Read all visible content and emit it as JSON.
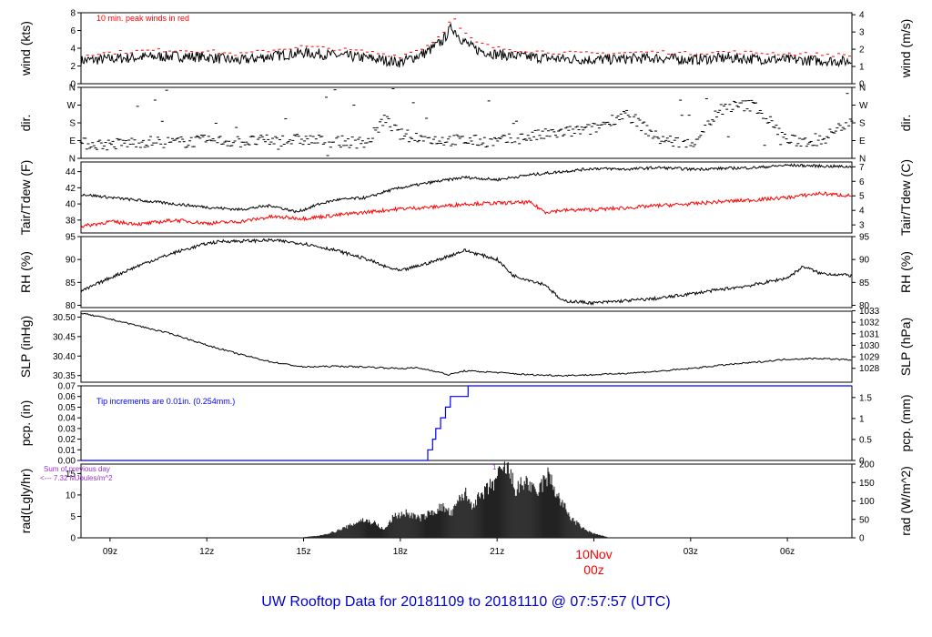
{
  "title": "UW Rooftop Data for 20181109  to  20181110 @ 07:57:57  (UTC)",
  "colors": {
    "title": "#0000cc",
    "red": "#ff0000",
    "blue": "#0000ff",
    "purple": "#9933cc",
    "black": "#000000"
  },
  "x_axis": {
    "ticks": [
      {
        "hour": 9,
        "label": "09z"
      },
      {
        "hour": 12,
        "label": "12z"
      },
      {
        "hour": 15,
        "label": "15z"
      },
      {
        "hour": 18,
        "label": "18z"
      },
      {
        "hour": 21,
        "label": "21z"
      },
      {
        "hour": 24,
        "label": ""
      },
      {
        "hour": 27,
        "label": "03z"
      },
      {
        "hour": 30,
        "label": "06z"
      }
    ],
    "day_label": "10Nov",
    "day_sublabel": "00z",
    "range": [
      8.1,
      32.0
    ]
  },
  "chart_data": [
    {
      "type": "line",
      "ylabel": "wind (kts)",
      "ylabel_right": "wind (m/s)",
      "ylim": [
        0,
        8
      ],
      "yticks": [
        0,
        2,
        4,
        6,
        8
      ],
      "yticks_right": [
        {
          "v": 0,
          "label": "0"
        },
        {
          "v": 1.944,
          "label": "1"
        },
        {
          "v": 3.888,
          "label": "2"
        },
        {
          "v": 5.832,
          "label": "3"
        },
        {
          "v": 7.776,
          "label": "4"
        }
      ],
      "annotation": "10 min. peak winds in red",
      "series": [
        {
          "role": "mean",
          "x": [
            8.1,
            9,
            10,
            11,
            12,
            13,
            14,
            15,
            16,
            17,
            18,
            18.8,
            19.3,
            19.6,
            19.9,
            20.3,
            21,
            22,
            23,
            24,
            25,
            26,
            27,
            28,
            29,
            30,
            31,
            32
          ],
          "y": [
            2.6,
            2.8,
            3.0,
            3.1,
            3.0,
            2.6,
            3.1,
            3.5,
            3.2,
            2.9,
            2.4,
            3.5,
            4.8,
            6.4,
            5.0,
            3.9,
            3.3,
            3.0,
            2.8,
            2.7,
            2.8,
            2.9,
            2.7,
            2.9,
            2.8,
            2.7,
            2.6,
            2.5
          ]
        },
        {
          "role": "peak",
          "x": [
            8.1,
            9,
            10,
            11,
            12,
            13,
            14,
            15,
            16,
            17,
            18,
            18.8,
            19.3,
            19.6,
            19.9,
            20.3,
            21,
            22,
            23,
            24,
            25,
            26,
            27,
            28,
            29,
            30,
            31,
            32
          ],
          "y": [
            3.3,
            3.5,
            3.7,
            3.8,
            3.7,
            3.3,
            3.8,
            4.2,
            3.9,
            3.6,
            3.1,
            4.2,
            5.6,
            7.7,
            6.0,
            4.7,
            4.0,
            3.7,
            3.5,
            3.4,
            3.5,
            3.6,
            3.4,
            3.6,
            3.5,
            3.4,
            3.3,
            3.2
          ]
        }
      ]
    },
    {
      "type": "scatter",
      "ylabel": "dir.",
      "ylabel_right": "dir.",
      "ylim": [
        0,
        360
      ],
      "ytick_labels": [
        {
          "v": 0,
          "label": "N"
        },
        {
          "v": 90,
          "label": "E"
        },
        {
          "v": 180,
          "label": "S"
        },
        {
          "v": 270,
          "label": "W"
        },
        {
          "v": 360,
          "label": "N"
        }
      ],
      "series": [
        {
          "x": [
            8.1,
            9,
            10,
            11,
            12,
            13,
            14,
            15,
            16,
            17,
            17.5,
            18,
            19,
            20,
            21,
            22,
            23,
            24,
            25,
            26,
            27,
            28,
            29,
            30,
            31,
            32
          ],
          "y": [
            75,
            70,
            85,
            80,
            90,
            85,
            90,
            95,
            85,
            80,
            200,
            120,
            95,
            90,
            85,
            110,
            130,
            150,
            230,
            100,
            70,
            260,
            270,
            90,
            85,
            200
          ]
        }
      ]
    },
    {
      "type": "line",
      "ylabel": "Tair/Tdew (F)",
      "ylabel_right": "Tair/Tdew (C)",
      "ylim": [
        36.4,
        45.2
      ],
      "yticks": [
        38,
        40,
        42,
        44
      ],
      "yticks_right": [
        {
          "v": 37.4,
          "label": "3"
        },
        {
          "v": 39.2,
          "label": "4"
        },
        {
          "v": 41.0,
          "label": "5"
        },
        {
          "v": 42.8,
          "label": "6"
        },
        {
          "v": 44.6,
          "label": "7"
        }
      ],
      "series": [
        {
          "name": "Tair",
          "x": [
            8.1,
            9,
            10,
            11,
            12,
            13,
            14,
            14.8,
            15.5,
            16,
            17,
            17.5,
            18,
            19,
            20,
            21,
            22,
            23,
            24,
            25,
            26,
            27,
            28,
            29,
            30,
            31,
            32
          ],
          "y": [
            41.2,
            40.8,
            40.4,
            40.0,
            39.6,
            39.3,
            39.8,
            39.0,
            40.0,
            40.5,
            40.8,
            41.5,
            42.0,
            42.7,
            43.3,
            43.0,
            43.6,
            44.0,
            44.4,
            44.3,
            44.5,
            44.3,
            44.4,
            44.5,
            44.8,
            44.7,
            44.6
          ]
        },
        {
          "name": "Tdew",
          "x": [
            8.1,
            9,
            10,
            11,
            12,
            13,
            14,
            15,
            16,
            17,
            18,
            19,
            20,
            21,
            22,
            22.5,
            23,
            24,
            25,
            26,
            27,
            28,
            29,
            30,
            31,
            32
          ],
          "y": [
            37.2,
            37.8,
            37.5,
            38.0,
            37.6,
            37.8,
            38.4,
            38.2,
            38.6,
            39.0,
            39.4,
            39.6,
            40.0,
            40.1,
            40.2,
            39.0,
            39.2,
            39.3,
            39.5,
            39.8,
            40.0,
            40.3,
            40.5,
            40.8,
            41.3,
            41.0
          ]
        }
      ]
    },
    {
      "type": "line",
      "ylabel": "RH (%)",
      "ylabel_right": "RH (%)",
      "ylim": [
        79.5,
        95
      ],
      "yticks": [
        80,
        85,
        90,
        95
      ],
      "yticks_right": [
        {
          "v": 80,
          "label": "80"
        },
        {
          "v": 85,
          "label": "85"
        },
        {
          "v": 90,
          "label": "90"
        },
        {
          "v": 95,
          "label": "95"
        }
      ],
      "series": [
        {
          "x": [
            8.1,
            9,
            10,
            11,
            12,
            12.5,
            13,
            14,
            15,
            16,
            17,
            17.5,
            18,
            19,
            20,
            21,
            21.5,
            22,
            22.5,
            23,
            24,
            25,
            26,
            27,
            28,
            29,
            30,
            30.5,
            31,
            32
          ],
          "y": [
            83.0,
            86.0,
            89.0,
            91.5,
            93.5,
            94.0,
            94.0,
            94.2,
            93.5,
            92.0,
            90.0,
            88.5,
            87.5,
            89.5,
            92.0,
            90.0,
            86.5,
            85.5,
            84.5,
            81.0,
            80.5,
            81.0,
            81.5,
            82.5,
            83.5,
            84.5,
            86.0,
            88.5,
            87.0,
            86.5
          ]
        }
      ]
    },
    {
      "type": "line",
      "ylabel": "SLP (inHg)",
      "ylabel_right": "SLP (hPa)",
      "ylim": [
        30.333,
        30.515
      ],
      "yticks": [
        30.35,
        30.4,
        30.45,
        30.5
      ],
      "yticks_right": [
        {
          "v": 30.3686,
          "label": "1028"
        },
        {
          "v": 30.3981,
          "label": "1029"
        },
        {
          "v": 30.4277,
          "label": "1030"
        },
        {
          "v": 30.4572,
          "label": "1031"
        },
        {
          "v": 30.4867,
          "label": "1032"
        },
        {
          "v": 30.5163,
          "label": "1033"
        }
      ],
      "series": [
        {
          "x": [
            8.1,
            9,
            10,
            11,
            12,
            13,
            14,
            15,
            16,
            17,
            18,
            18.5,
            19,
            19.5,
            20,
            21,
            22,
            23,
            24,
            25,
            26,
            27,
            28,
            29,
            30,
            31,
            32
          ],
          "y": [
            30.51,
            30.495,
            30.475,
            30.455,
            30.428,
            30.405,
            30.385,
            30.372,
            30.374,
            30.372,
            30.368,
            30.37,
            30.363,
            30.352,
            30.362,
            30.358,
            30.352,
            30.35,
            30.352,
            30.356,
            30.361,
            30.368,
            30.377,
            30.384,
            30.392,
            30.394,
            30.39
          ]
        }
      ]
    },
    {
      "type": "line",
      "ylabel": "pcp. (in)",
      "ylabel_right": "pcp. (mm)",
      "ylim": [
        0,
        0.07
      ],
      "yticks": [
        0.0,
        0.01,
        0.02,
        0.03,
        0.04,
        0.05,
        0.06,
        0.07
      ],
      "yticks_right": [
        {
          "v": 0,
          "label": "0"
        },
        {
          "v": 0.01969,
          "label": "0.5"
        },
        {
          "v": 0.03937,
          "label": "1"
        },
        {
          "v": 0.05906,
          "label": "1.5"
        }
      ],
      "annotation": "Tip increments are 0.01in. (0.254mm.)",
      "series": [
        {
          "x": [
            8.1,
            18.85,
            18.85,
            19.0,
            19.0,
            19.1,
            19.1,
            19.25,
            19.25,
            19.4,
            19.4,
            19.55,
            19.55,
            20.1,
            20.1,
            32
          ],
          "y": [
            0,
            0,
            0.01,
            0.01,
            0.02,
            0.02,
            0.03,
            0.03,
            0.04,
            0.04,
            0.05,
            0.05,
            0.06,
            0.06,
            0.07,
            0.07
          ]
        }
      ]
    },
    {
      "type": "area",
      "ylabel": "rad(Lgly/hr)",
      "ylabel_right": "rad (W/m^2)",
      "ylim": [
        0,
        17.2
      ],
      "yticks": [
        0,
        5,
        10,
        15
      ],
      "yticks_right": [
        {
          "v": 0,
          "label": "0"
        },
        {
          "v": 4.3,
          "label": "50"
        },
        {
          "v": 8.6,
          "label": "100"
        },
        {
          "v": 12.9,
          "label": "150"
        },
        {
          "v": 17.2,
          "label": "200"
        }
      ],
      "annotation": "Sum of previous day",
      "annotation2": "<--- 7.32 MJoules/m^2",
      "peak_marker": "1",
      "series": [
        {
          "x": [
            8.1,
            14.8,
            15.5,
            16.0,
            16.5,
            16.8,
            17.2,
            17.5,
            17.8,
            18.2,
            18.6,
            19.0,
            19.3,
            19.6,
            19.8,
            20.0,
            20.2,
            20.5,
            20.8,
            21.0,
            21.3,
            21.6,
            21.9,
            22.2,
            22.4,
            22.6,
            22.9,
            23.3,
            23.7,
            24.0,
            24.3,
            24.5,
            32
          ],
          "y": [
            0,
            0,
            0.5,
            1.5,
            3.0,
            4.2,
            3.5,
            1.8,
            5.0,
            5.8,
            4.5,
            6.0,
            7.2,
            5.5,
            8.5,
            10.5,
            7.8,
            9.5,
            12.0,
            14.0,
            16.5,
            11.0,
            13.5,
            10.0,
            12.5,
            14.5,
            9.5,
            4.5,
            2.0,
            1.0,
            0.4,
            0,
            0
          ]
        }
      ]
    }
  ]
}
